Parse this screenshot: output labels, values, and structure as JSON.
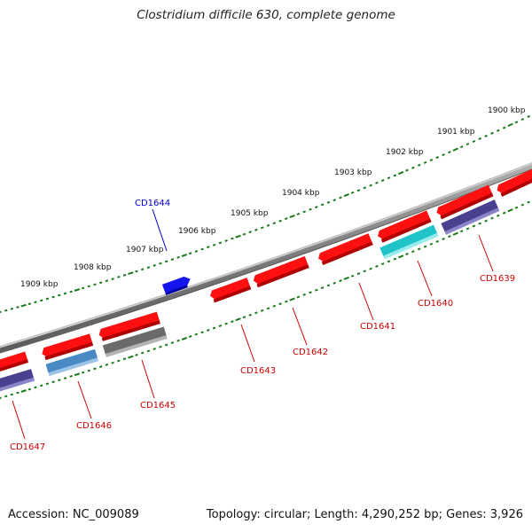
{
  "title": "Clostridium difficile 630, complete genome",
  "accession_text": "Accession: NC_009089",
  "summary_text": "Topology: circular; Length: 4,290,252 bp; Genes: 3,926",
  "colors": {
    "backbone": "#8a8a8a",
    "tick": "#1a7a1a",
    "feature_label": "#cc0000",
    "highlight_label": "#0000cc",
    "cds_red": "#ff1010",
    "cds_blue": "#1414ee",
    "cds_steel": "#4a8ac4",
    "cds_gray": "#6a6a6a",
    "cds_purple": "#4a4090",
    "cds_cyan": "#20c4c8"
  },
  "kbp_labels": [
    "1900 kbp",
    "1901 kbp",
    "1902 kbp",
    "1903 kbp",
    "1904 kbp",
    "1905 kbp",
    "1906 kbp",
    "1907 kbp",
    "1908 kbp",
    "1909 kbp"
  ],
  "gene_labels": {
    "cd1639": "CD1639",
    "cd1640": "CD1640",
    "cd1641": "CD1641",
    "cd1642": "CD1642",
    "cd1643": "CD1643",
    "cd1644": "CD1644",
    "cd1645": "CD1645",
    "cd1646": "CD1646",
    "cd1647": "CD1647"
  }
}
